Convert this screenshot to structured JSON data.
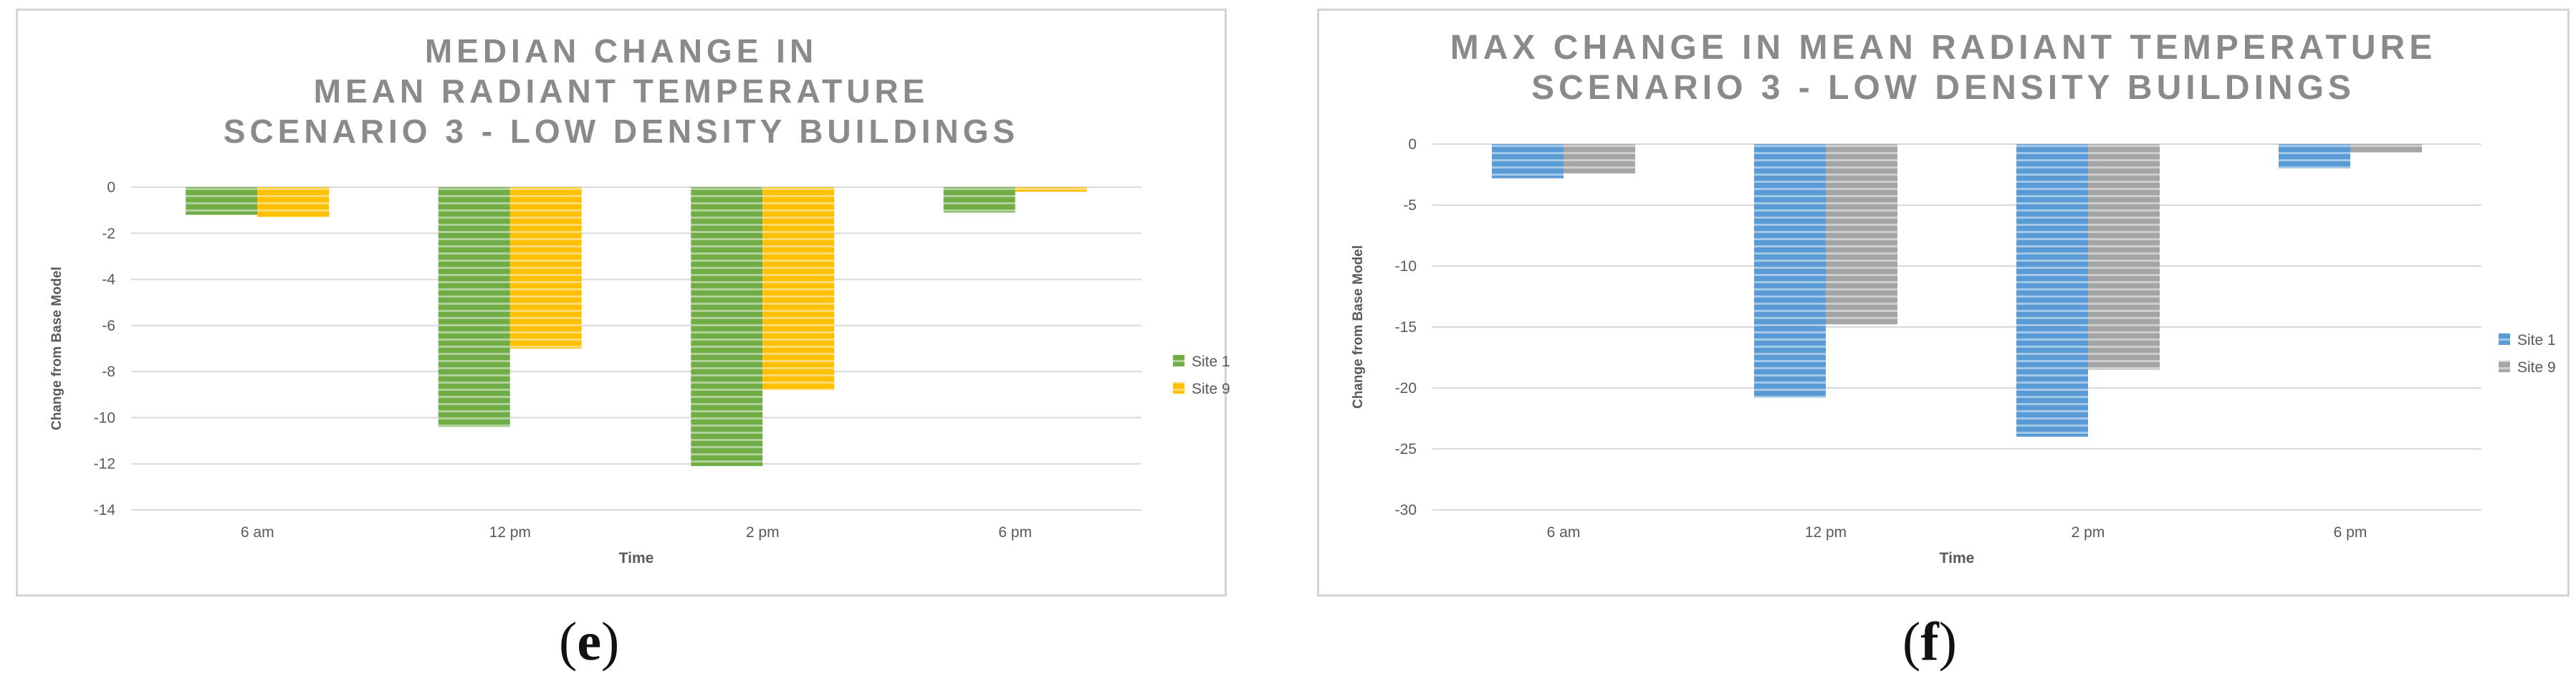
{
  "chart_data": [
    {
      "type": "bar",
      "title_lines": [
        "MEDIAN CHANGE IN",
        "MEAN RADIANT TEMPERATURE",
        "SCENARIO 3 - LOW DENSITY BUILDINGS"
      ],
      "xlabel": "Time",
      "ylabel": "Change from Base Model",
      "categories": [
        "6 am",
        "12 pm",
        "2 pm",
        "6 pm"
      ],
      "ylim": [
        -14,
        0
      ],
      "yticks": [
        0,
        -2,
        -4,
        -6,
        -8,
        -10,
        -12,
        -14
      ],
      "grid": true,
      "legend_position": "right",
      "series": [
        {
          "name": "Site 1",
          "color": "#70ad47",
          "values": [
            -1.2,
            -10.4,
            -12.1,
            -1.1
          ]
        },
        {
          "name": "Site 9",
          "color": "#ffc000",
          "values": [
            -1.3,
            -7.0,
            -8.8,
            -0.2
          ]
        }
      ],
      "caption": {
        "open": "(",
        "letter": "e",
        "close": ")"
      }
    },
    {
      "type": "bar",
      "title_lines": [
        "MAX CHANGE IN MEAN RADIANT TEMPERATURE",
        "SCENARIO 3 - LOW DENSITY BUILDINGS"
      ],
      "xlabel": "Time",
      "ylabel": "Change from Base Model",
      "categories": [
        "6 am",
        "12 pm",
        "2 pm",
        "6 pm"
      ],
      "ylim": [
        -30,
        0
      ],
      "yticks": [
        0,
        -5,
        -10,
        -15,
        -20,
        -25,
        -30
      ],
      "grid": true,
      "legend_position": "right",
      "series": [
        {
          "name": "Site 1",
          "color": "#5b9bd5",
          "values": [
            -2.8,
            -20.8,
            -24.0,
            -2.0
          ]
        },
        {
          "name": "Site 9",
          "color": "#a5a5a5",
          "values": [
            -2.4,
            -14.8,
            -18.5,
            -0.7
          ]
        }
      ],
      "caption": {
        "open": "(",
        "letter": "f",
        "close": ")"
      }
    }
  ]
}
